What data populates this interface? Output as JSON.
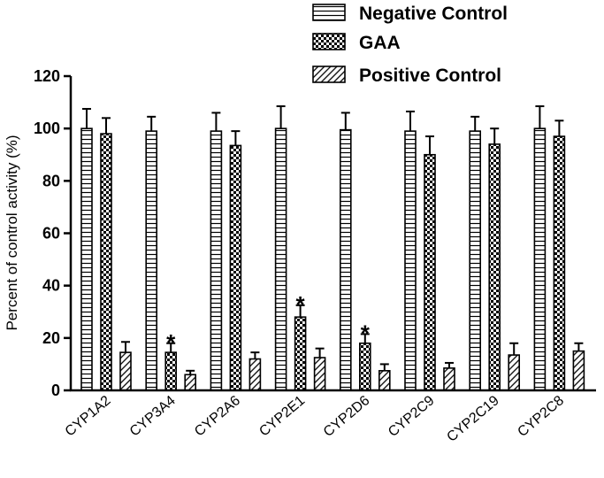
{
  "chart_data": {
    "type": "bar",
    "title": "",
    "xlabel": "",
    "ylabel": "Percent of control activity (%)",
    "ylim": [
      0,
      120
    ],
    "yticks": [
      "0",
      "20",
      "40",
      "60",
      "80",
      "100",
      "120"
    ],
    "categories": [
      "CYP1A2",
      "CYP3A4",
      "CYP2A6",
      "CYP2E1",
      "CYP2D6",
      "CYP2C9",
      "CYP2C19",
      "CYP2C8"
    ],
    "series": [
      {
        "name": "Negative Control",
        "pattern": "horizontal-lines",
        "values": [
          100,
          99,
          99,
          100,
          99.5,
          99,
          99,
          100
        ],
        "errors": [
          7.5,
          5.5,
          7,
          8.5,
          6.5,
          7.5,
          5.5,
          8.5
        ]
      },
      {
        "name": "GAA",
        "pattern": "checker",
        "values": [
          98,
          14.5,
          93.5,
          28,
          18,
          90,
          94,
          97
        ],
        "errors": [
          6,
          3.5,
          5.5,
          4.5,
          3.5,
          7,
          6,
          6
        ]
      },
      {
        "name": "Positive Control",
        "pattern": "diagonal-lines",
        "values": [
          14.5,
          6,
          12,
          12.5,
          7.5,
          8.5,
          13.5,
          15
        ],
        "errors": [
          4,
          1.5,
          2.5,
          3.5,
          2.5,
          2,
          4.5,
          3
        ]
      }
    ],
    "annotations": [
      {
        "text": "*",
        "category": "CYP3A4",
        "series": "GAA"
      },
      {
        "text": "*",
        "category": "CYP2E1",
        "series": "GAA"
      },
      {
        "text": "*",
        "category": "CYP2D6",
        "series": "GAA"
      }
    ],
    "legend": "top-right",
    "grid": false,
    "colors": {
      "stroke": "#000000",
      "fill": "#ffffff"
    }
  }
}
